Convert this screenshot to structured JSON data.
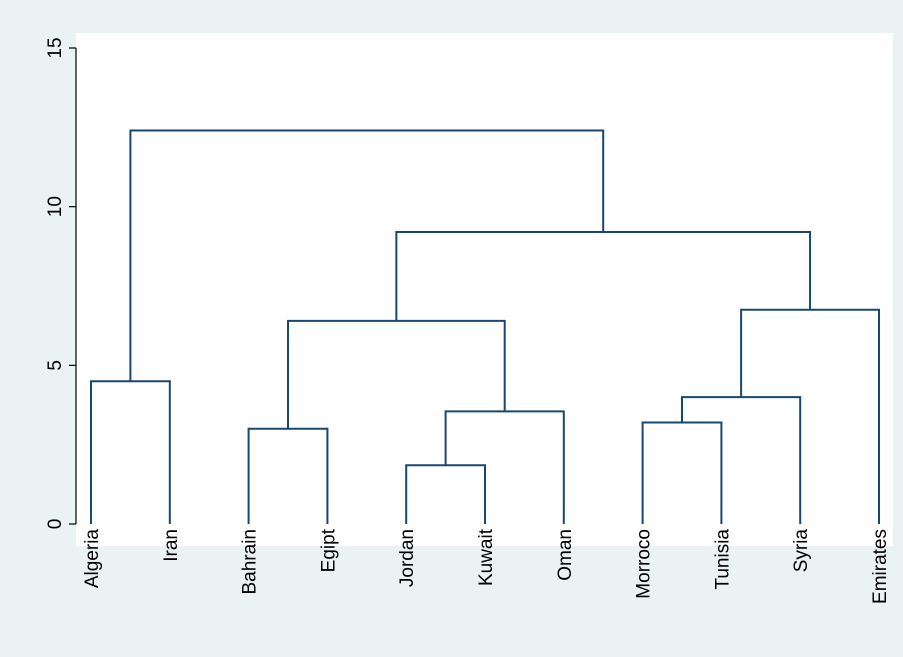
{
  "chart_data": {
    "type": "dendrogram",
    "title": "",
    "xlabel": "",
    "ylabel": "",
    "ylim": [
      0,
      15
    ],
    "yticks": [
      0,
      5,
      10,
      15
    ],
    "ytick_labels": [
      "0",
      "5",
      "10",
      "15"
    ],
    "grid": false,
    "legend": "none",
    "leaves": [
      "Algeria",
      "Iran",
      "Bahrain",
      "Egipt",
      "Jordan",
      "Kuwait",
      "Oman",
      "Morroco",
      "Tunisia",
      "Syria",
      "Emirates"
    ],
    "merges": [
      {
        "left": "Algeria",
        "right": "Iran",
        "height": 4.5
      },
      {
        "left": "Bahrain",
        "right": "Egipt",
        "height": 3.0
      },
      {
        "left": "Jordan",
        "right": "Kuwait",
        "height": 1.85
      },
      {
        "left": "Jordan+Kuwait",
        "right": "Oman",
        "height": 3.55
      },
      {
        "left": "Bahrain+Egipt",
        "right": "Jordan+Kuwait+Oman",
        "height": 6.4
      },
      {
        "left": "Morroco",
        "right": "Tunisia",
        "height": 3.2
      },
      {
        "left": "Morroco+Tunisia",
        "right": "Syria",
        "height": 4.0
      },
      {
        "left": "Morroco+Tunisia+Syria",
        "right": "Emirates",
        "height": 6.75
      },
      {
        "left": "Bahrain..Oman",
        "right": "Morroco..Emirates",
        "height": 9.2
      },
      {
        "left": "Algeria+Iran",
        "right": "Bahrain..Emirates",
        "height": 12.4
      }
    ],
    "colors": {
      "background": "#eaf2f3",
      "plot_area": "#ffffff",
      "line": "#1a476f",
      "axis": "#000000"
    }
  }
}
